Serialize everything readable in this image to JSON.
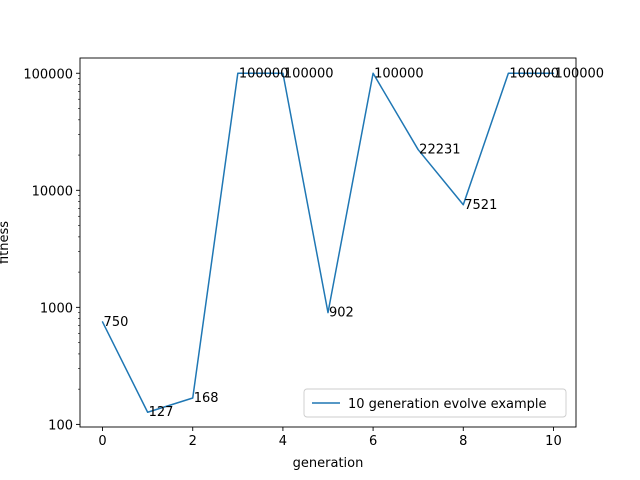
{
  "chart_data": {
    "type": "line",
    "xlabel": "generation",
    "ylabel": "fitness",
    "yscale": "log",
    "xlim": [
      -0.5,
      10.5
    ],
    "ylim": [
      95,
      135000
    ],
    "x_ticks": [
      0,
      2,
      4,
      6,
      8,
      10
    ],
    "x_tick_labels": [
      "0",
      "2",
      "4",
      "6",
      "8",
      "10"
    ],
    "y_ticks": [
      100,
      1000,
      10000,
      100000
    ],
    "y_tick_labels": [
      "100",
      "1000",
      "10000",
      "100000"
    ],
    "grid": false,
    "legend_position": "lower-right",
    "series": [
      {
        "name": "10 generation evolve example",
        "color": "#1f77b4",
        "x": [
          0,
          1,
          2,
          3,
          4,
          5,
          6,
          7,
          8,
          9,
          10
        ],
        "values": [
          750,
          127,
          168,
          100000,
          100000,
          902,
          100000,
          22231,
          7521,
          100000,
          100000
        ],
        "labels": [
          "750",
          "127",
          "168",
          "100000",
          "100000",
          "902",
          "100000",
          "22231",
          "7521",
          "100000",
          "100000"
        ]
      }
    ]
  }
}
